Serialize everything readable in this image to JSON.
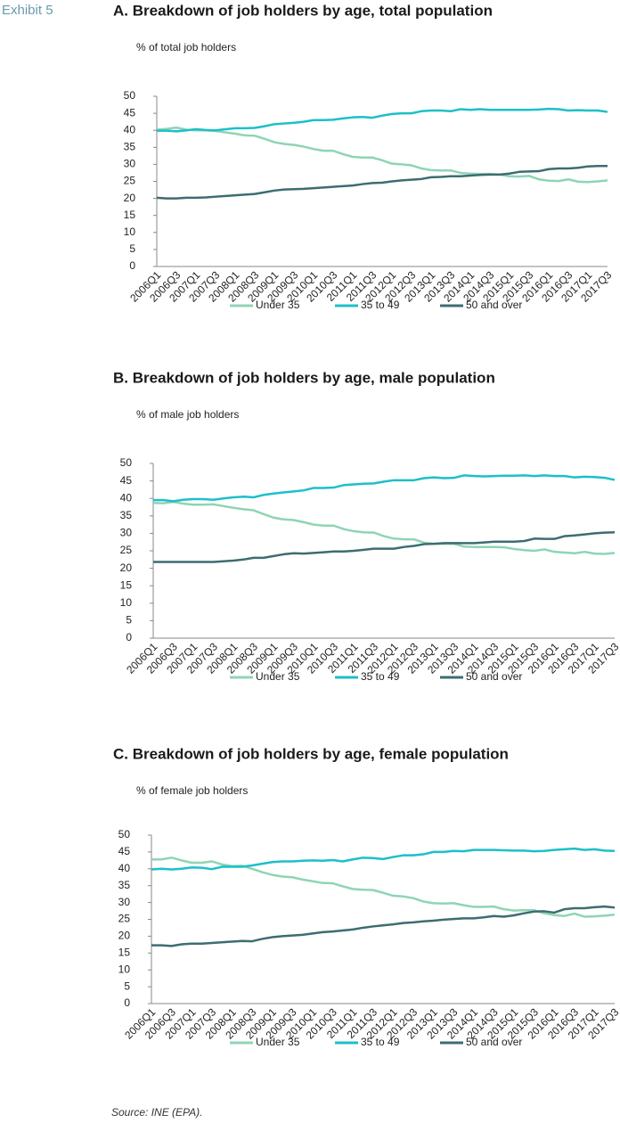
{
  "exhibit": "Exhibit 5",
  "source": "Source: INE (EPA).",
  "chart_data": [
    {
      "type": "line",
      "title": "A. Breakdown of job holders by age, total population",
      "y_label": "% of total job holders",
      "categories": [
        "2006Q1",
        null,
        "2006Q3",
        null,
        "2007Q1",
        null,
        "2007Q3",
        null,
        "2008Q1",
        null,
        "2008Q3",
        null,
        "2009Q1",
        null,
        "2009Q3",
        null,
        "2010Q1",
        null,
        "2010Q3",
        null,
        "2011Q1",
        null,
        "2011Q3",
        null,
        "2012Q1",
        null,
        "2012Q3",
        null,
        "2013Q1",
        null,
        "2013Q3",
        null,
        "2014Q1",
        null,
        "2014Q3",
        null,
        "2015Q1",
        null,
        "2015Q3",
        null,
        "2016Q1",
        null,
        "2016Q3",
        null,
        "2017Q1",
        null,
        "2017Q3"
      ],
      "ylim": [
        0,
        50
      ],
      "yticks": [
        0,
        5,
        10,
        15,
        20,
        25,
        30,
        35,
        40,
        45,
        50
      ],
      "grid": false,
      "legend": "bottom",
      "series": [
        {
          "name": "Under 35",
          "color": "#8fd4b5",
          "values": [
            40.2,
            40.4,
            40.8,
            40.2,
            40.0,
            40.0,
            39.8,
            39.4,
            39.0,
            38.5,
            38.4,
            37.5,
            36.5,
            36.0,
            35.7,
            35.2,
            34.5,
            34.0,
            34.0,
            33.0,
            32.2,
            32.0,
            32.0,
            31.2,
            30.2,
            30.0,
            29.7,
            28.8,
            28.3,
            28.2,
            28.2,
            27.5,
            27.3,
            27.2,
            27.2,
            27.0,
            26.5,
            26.4,
            26.6,
            25.6,
            25.2,
            25.1,
            25.6,
            24.9,
            24.8,
            25.0,
            25.3
          ]
        },
        {
          "name": "35 to 49",
          "color": "#1dbfc9",
          "values": [
            39.9,
            39.9,
            39.7,
            40.0,
            40.3,
            40.1,
            40.0,
            40.3,
            40.6,
            40.6,
            40.7,
            41.2,
            41.8,
            42.0,
            42.2,
            42.5,
            43.0,
            43.0,
            43.1,
            43.5,
            43.8,
            43.9,
            43.7,
            44.3,
            44.8,
            45.0,
            45.0,
            45.6,
            45.8,
            45.8,
            45.6,
            46.2,
            46.0,
            46.2,
            46.0,
            46.0,
            46.0,
            46.0,
            46.0,
            46.1,
            46.3,
            46.2,
            45.8,
            45.9,
            45.8,
            45.8,
            45.4
          ]
        },
        {
          "name": "50 and over",
          "color": "#3d6d70",
          "values": [
            20.2,
            20.0,
            20.0,
            20.2,
            20.2,
            20.3,
            20.5,
            20.7,
            20.9,
            21.1,
            21.3,
            21.8,
            22.3,
            22.6,
            22.7,
            22.8,
            23.0,
            23.2,
            23.4,
            23.6,
            23.8,
            24.2,
            24.5,
            24.6,
            25.0,
            25.3,
            25.5,
            25.7,
            26.2,
            26.3,
            26.5,
            26.5,
            26.7,
            26.9,
            27.0,
            27.0,
            27.3,
            27.8,
            27.9,
            28.0,
            28.6,
            28.8,
            28.8,
            29.0,
            29.4,
            29.5,
            29.5
          ]
        }
      ]
    },
    {
      "type": "line",
      "title": "B. Breakdown of job holders by age, male population",
      "y_label": "% of male job holders",
      "categories": [
        "2006Q1",
        null,
        "2006Q3",
        null,
        "2007Q1",
        null,
        "2007Q3",
        null,
        "2008Q1",
        null,
        "2008Q3",
        null,
        "2009Q1",
        null,
        "2009Q3",
        null,
        "2010Q1",
        null,
        "2010Q3",
        null,
        "2011Q1",
        null,
        "2011Q3",
        null,
        "2012Q1",
        null,
        "2012Q3",
        null,
        "2013Q1",
        null,
        "2013Q3",
        null,
        "2014Q1",
        null,
        "2014Q3",
        null,
        "2015Q1",
        null,
        "2015Q3",
        null,
        "2016Q1",
        null,
        "2016Q3",
        null,
        "2017Q1",
        null,
        "2017Q3"
      ],
      "ylim": [
        0,
        50
      ],
      "yticks": [
        0,
        5,
        10,
        15,
        20,
        25,
        30,
        35,
        40,
        45,
        50
      ],
      "grid": false,
      "legend": "bottom",
      "series": [
        {
          "name": "Under 35",
          "color": "#8fd4b5",
          "values": [
            38.7,
            38.6,
            39.0,
            38.5,
            38.2,
            38.2,
            38.3,
            37.8,
            37.3,
            36.9,
            36.6,
            35.5,
            34.5,
            34.0,
            33.8,
            33.2,
            32.5,
            32.2,
            32.2,
            31.2,
            30.6,
            30.3,
            30.2,
            29.2,
            28.5,
            28.3,
            28.3,
            27.3,
            27.0,
            27.0,
            27.0,
            26.2,
            26.1,
            26.1,
            26.1,
            26.0,
            25.5,
            25.2,
            25.0,
            25.4,
            24.7,
            24.5,
            24.3,
            24.7,
            24.2,
            24.1,
            24.4
          ]
        },
        {
          "name": "35 to 49",
          "color": "#1dbfc9",
          "values": [
            39.5,
            39.5,
            39.2,
            39.6,
            39.8,
            39.8,
            39.6,
            40.0,
            40.3,
            40.5,
            40.3,
            41.0,
            41.4,
            41.7,
            42.0,
            42.3,
            43.0,
            43.0,
            43.1,
            43.8,
            44.0,
            44.2,
            44.3,
            44.8,
            45.2,
            45.2,
            45.2,
            45.8,
            46.0,
            45.8,
            45.9,
            46.6,
            46.4,
            46.3,
            46.4,
            46.5,
            46.5,
            46.6,
            46.4,
            46.6,
            46.4,
            46.4,
            46.0,
            46.2,
            46.1,
            45.9,
            45.3
          ]
        },
        {
          "name": "50 and over",
          "color": "#3d6d70",
          "values": [
            21.8,
            21.8,
            21.8,
            21.8,
            21.8,
            21.8,
            21.8,
            22.0,
            22.2,
            22.5,
            23.0,
            23.0,
            23.5,
            24.0,
            24.3,
            24.2,
            24.4,
            24.6,
            24.8,
            24.8,
            25.0,
            25.3,
            25.6,
            25.6,
            25.6,
            26.1,
            26.4,
            26.9,
            27.0,
            27.2,
            27.2,
            27.2,
            27.2,
            27.4,
            27.6,
            27.6,
            27.6,
            27.8,
            28.5,
            28.4,
            28.4,
            29.2,
            29.4,
            29.7,
            30.0,
            30.2,
            30.3
          ]
        }
      ]
    },
    {
      "type": "line",
      "title": "C. Breakdown of job holders by age, female population",
      "y_label": "% of female job holders",
      "categories": [
        "2006Q1",
        null,
        "2006Q3",
        null,
        "2007Q1",
        null,
        "2007Q3",
        null,
        "2008Q1",
        null,
        "2008Q3",
        null,
        "2009Q1",
        null,
        "2009Q3",
        null,
        "2010Q1",
        null,
        "2010Q3",
        null,
        "2011Q1",
        null,
        "2011Q3",
        null,
        "2012Q1",
        null,
        "2012Q3",
        null,
        "2013Q1",
        null,
        "2013Q3",
        null,
        "2014Q1",
        null,
        "2014Q3",
        null,
        "2015Q1",
        null,
        "2015Q3",
        null,
        "2016Q1",
        null,
        "2016Q3",
        null,
        "2017Q1",
        null,
        "2017Q3"
      ],
      "ylim": [
        0,
        50
      ],
      "yticks": [
        0,
        5,
        10,
        15,
        20,
        25,
        30,
        35,
        40,
        45,
        50
      ],
      "grid": false,
      "legend": "bottom",
      "series": [
        {
          "name": "Under 35",
          "color": "#8fd4b5",
          "values": [
            42.8,
            42.8,
            43.3,
            42.5,
            41.8,
            41.8,
            42.2,
            41.3,
            40.8,
            40.9,
            40.0,
            39.0,
            38.2,
            37.7,
            37.5,
            36.8,
            36.3,
            35.8,
            35.7,
            34.8,
            34.0,
            33.8,
            33.7,
            32.9,
            32.0,
            31.8,
            31.3,
            30.3,
            29.8,
            29.7,
            29.8,
            29.2,
            28.7,
            28.7,
            28.8,
            28.0,
            27.6,
            27.7,
            27.7,
            26.8,
            26.3,
            26.0,
            26.7,
            25.8,
            25.9,
            26.1,
            26.4
          ]
        },
        {
          "name": "35 to 49",
          "color": "#1dbfc9",
          "values": [
            39.8,
            40.0,
            39.8,
            40.0,
            40.4,
            40.3,
            39.9,
            40.6,
            40.6,
            40.6,
            41.0,
            41.5,
            42.0,
            42.2,
            42.2,
            42.4,
            42.5,
            42.4,
            42.6,
            42.2,
            42.8,
            43.3,
            43.2,
            42.9,
            43.5,
            44.0,
            44.0,
            44.3,
            45.0,
            45.0,
            45.3,
            45.2,
            45.6,
            45.6,
            45.6,
            45.5,
            45.4,
            45.4,
            45.2,
            45.3,
            45.6,
            45.8,
            46.0,
            45.6,
            45.8,
            45.4,
            45.3
          ]
        },
        {
          "name": "50 and over",
          "color": "#3d6d70",
          "values": [
            17.3,
            17.3,
            17.1,
            17.6,
            17.8,
            17.8,
            18.0,
            18.2,
            18.4,
            18.6,
            18.5,
            19.2,
            19.7,
            20.0,
            20.2,
            20.4,
            20.8,
            21.2,
            21.4,
            21.7,
            22.0,
            22.5,
            22.9,
            23.2,
            23.5,
            23.9,
            24.1,
            24.4,
            24.6,
            24.9,
            25.1,
            25.3,
            25.3,
            25.6,
            26.0,
            25.8,
            26.2,
            26.8,
            27.3,
            27.4,
            27.0,
            28.0,
            28.3,
            28.3,
            28.6,
            28.8,
            28.5
          ]
        }
      ]
    }
  ]
}
